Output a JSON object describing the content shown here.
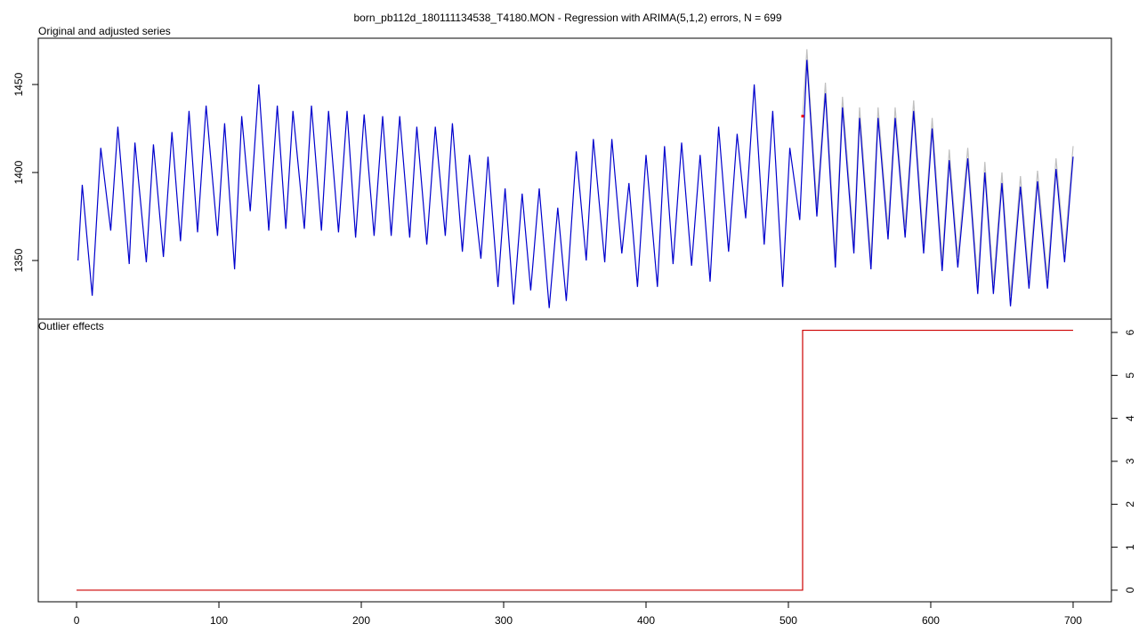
{
  "chart_data": [
    {
      "type": "line",
      "title": "born_pb112d_180111134538_T4180.MON - Regression with ARIMA(5,1,2) errors, N = 699",
      "subtitle": "Original and adjusted series",
      "xlim": [
        -26.9,
        726.9
      ],
      "ylim": [
        1316.7,
        1476.3
      ],
      "yticks": [
        1350,
        1400,
        1450
      ],
      "y_axis_side": "left",
      "series": [
        {
          "color": "#c0c0c0",
          "x": [
            510,
            513,
            520,
            526,
            533,
            538,
            546,
            550,
            558,
            563,
            570,
            575,
            582,
            588,
            595,
            601,
            608,
            613,
            619,
            626,
            633,
            638,
            644,
            650,
            656,
            663,
            669,
            675,
            682,
            688,
            694,
            700
          ],
          "values": [
            1432,
            1470,
            1381,
            1451,
            1352,
            1443,
            1360,
            1437,
            1351,
            1437,
            1368,
            1437,
            1369,
            1441,
            1360,
            1431,
            1350,
            1413,
            1352,
            1414,
            1337,
            1406,
            1337,
            1400,
            1330,
            1398,
            1340,
            1401,
            1340,
            1408,
            1355,
            1415
          ]
        },
        {
          "color": "#0000cd",
          "x": [
            1,
            4,
            11,
            17,
            24,
            29,
            37,
            41,
            49,
            54,
            61,
            67,
            73,
            79,
            85,
            91,
            99,
            104,
            111,
            116,
            122,
            128,
            135,
            141,
            147,
            152,
            160,
            165,
            172,
            177,
            184,
            190,
            196,
            202,
            209,
            215,
            221,
            227,
            234,
            239,
            246,
            252,
            259,
            264,
            271,
            276,
            284,
            289,
            296,
            301,
            307,
            313,
            319,
            325,
            332,
            338,
            344,
            351,
            358,
            363,
            371,
            376,
            383,
            388,
            394,
            400,
            408,
            413,
            419,
            425,
            432,
            438,
            445,
            451,
            458,
            464,
            470,
            476,
            483,
            489,
            496,
            501,
            508,
            513,
            520,
            526,
            533,
            538,
            546,
            550,
            558,
            563,
            570,
            575,
            582,
            588,
            595,
            601,
            608,
            613,
            619,
            626,
            633,
            638,
            644,
            650,
            656,
            663,
            669,
            675,
            682,
            688,
            694,
            700
          ],
          "values": [
            1350,
            1393,
            1330,
            1414,
            1367,
            1426,
            1348,
            1417,
            1349,
            1416,
            1352,
            1423,
            1361,
            1435,
            1366,
            1438,
            1364,
            1428,
            1345,
            1432,
            1378,
            1450,
            1367,
            1438,
            1368,
            1435,
            1368,
            1438,
            1367,
            1435,
            1366,
            1435,
            1363,
            1433,
            1364,
            1432,
            1364,
            1432,
            1363,
            1426,
            1359,
            1426,
            1364,
            1428,
            1355,
            1410,
            1351,
            1409,
            1335,
            1391,
            1325,
            1388,
            1333,
            1391,
            1323,
            1380,
            1327,
            1412,
            1350,
            1419,
            1349,
            1419,
            1354,
            1394,
            1335,
            1410,
            1335,
            1415,
            1348,
            1417,
            1347,
            1410,
            1338,
            1426,
            1355,
            1422,
            1374,
            1450,
            1359,
            1435,
            1335,
            1414,
            1373,
            1464,
            1375,
            1445,
            1346,
            1437,
            1354,
            1431,
            1345,
            1431,
            1362,
            1431,
            1363,
            1435,
            1354,
            1425,
            1344,
            1407,
            1346,
            1408,
            1331,
            1400,
            1331,
            1394,
            1324,
            1392,
            1334,
            1395,
            1334,
            1402,
            1349,
            1409
          ]
        },
        {
          "color": "#ff0000",
          "marker": "point",
          "x": [
            510
          ],
          "values": [
            1432
          ]
        }
      ]
    },
    {
      "type": "line",
      "subtitle": "Outlier effects",
      "xlim": [
        -26.9,
        726.9
      ],
      "xticks": [
        0,
        100,
        200,
        300,
        400,
        500,
        600,
        700
      ],
      "ylim": [
        -0.27,
        6.31
      ],
      "yticks": [
        0,
        1,
        2,
        3,
        4,
        5,
        6
      ],
      "y_axis_side": "right",
      "series": [
        {
          "color": "#cd0000",
          "x": [
            0,
            510,
            510,
            700
          ],
          "values": [
            0,
            0,
            6.05,
            6.05
          ]
        }
      ]
    }
  ]
}
